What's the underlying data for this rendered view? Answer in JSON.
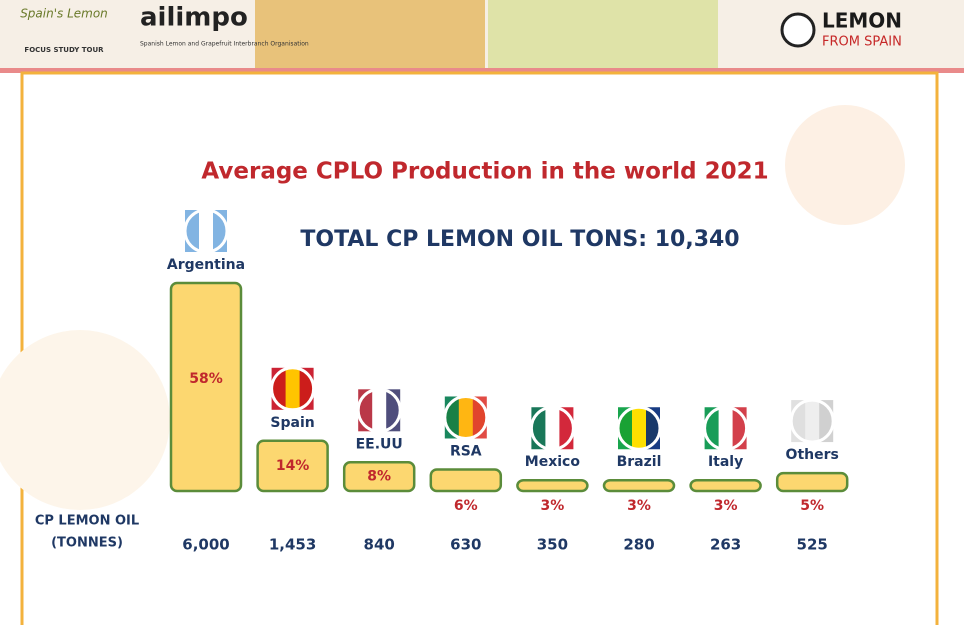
{
  "header": {
    "logo_left": "Spain's Lemon",
    "tour": "FOCUS STUDY TOUR",
    "org": "ailimpo",
    "org_sub": "Spanish Lemon and Grapefruit Interbranch Organisation",
    "brand": "LEMON",
    "brand_sub": "FROM SPAIN"
  },
  "chart_data": {
    "type": "bar",
    "title": "Average CPLO Production in the world 2021",
    "subtitle": "TOTAL CP LEMON OIL TONS: 10,340",
    "categories": [
      "Argentina",
      "Spain",
      "EE.UU",
      "RSA",
      "Mexico",
      "Brazil",
      "Italy",
      "Others"
    ],
    "values": [
      58,
      14,
      8,
      6,
      3,
      3,
      3,
      5
    ],
    "value_labels": [
      "58%",
      "14%",
      "8%",
      "6%",
      "3%",
      "3%",
      "3%",
      "5%"
    ],
    "color": "#fcd770",
    "row_label": [
      "CP LEMON OIL",
      "(TONNES)"
    ],
    "tonnes": [
      6000,
      1453,
      840,
      630,
      350,
      280,
      263,
      525
    ],
    "tonnes_labels": [
      "6,000",
      "1,453",
      "840",
      "630",
      "350",
      "280",
      "263",
      "525"
    ]
  }
}
